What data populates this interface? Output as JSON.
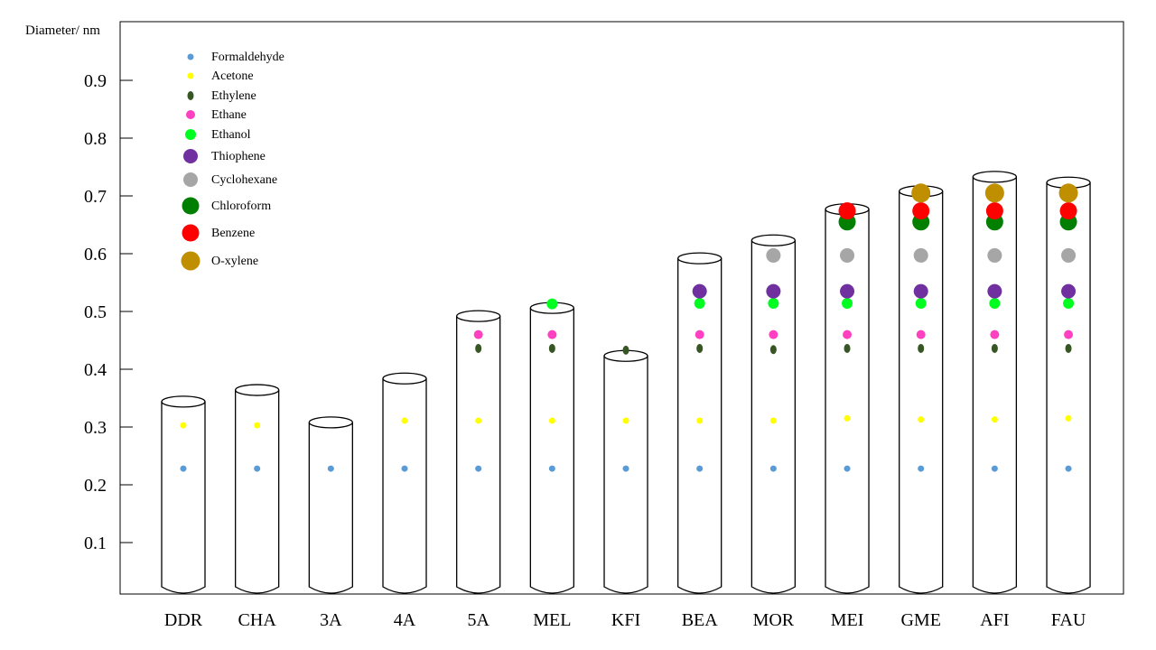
{
  "chart_data": {
    "type": "scatter",
    "title": "",
    "ylabel": "Diameter/ nm",
    "xlabel": "",
    "ylim": [
      0,
      1.0
    ],
    "yticks": [
      "0.1",
      "0.2",
      "0.3",
      "0.4",
      "0.5",
      "0.6",
      "0.7",
      "0.8",
      "0.9"
    ],
    "legend_position": "top-left",
    "molecules": [
      {
        "name": "Formaldehyde",
        "color": "#5b9bd5",
        "size": 3.5
      },
      {
        "name": "Acetone",
        "color": "#ffff00",
        "size": 3.5
      },
      {
        "name": "Ethylene",
        "color": "#375623",
        "size": 4
      },
      {
        "name": "Ethane",
        "color": "#ff40c0",
        "size": 5
      },
      {
        "name": "Ethanol",
        "color": "#00ff20",
        "size": 6
      },
      {
        "name": "Thiophene",
        "color": "#7030a0",
        "size": 8
      },
      {
        "name": "Cyclohexane",
        "color": "#a6a6a6",
        "size": 8
      },
      {
        "name": "Chloroform",
        "color": "#007f00",
        "size": 9.5
      },
      {
        "name": "Benzene",
        "color": "#ff0000",
        "size": 9.5
      },
      {
        "name": "O-xylene",
        "color": "#bf8f00",
        "size": 10.5
      }
    ],
    "categories": [
      "DDR",
      "CHA",
      "3A",
      "4A",
      "5A",
      "MEL",
      "KFI",
      "BEA",
      "MOR",
      "MEI",
      "GME",
      "AFI",
      "FAU"
    ],
    "pore_diameter": [
      0.344,
      0.364,
      0.308,
      0.384,
      0.492,
      0.506,
      0.423,
      0.592,
      0.623,
      0.677,
      0.708,
      0.733,
      0.723
    ],
    "points": [
      [
        [
          "Formaldehyde",
          0.228
        ],
        [
          "Acetone",
          0.303
        ]
      ],
      [
        [
          "Formaldehyde",
          0.228
        ],
        [
          "Acetone",
          0.303
        ]
      ],
      [
        [
          "Formaldehyde",
          0.228
        ]
      ],
      [
        [
          "Formaldehyde",
          0.228
        ],
        [
          "Acetone",
          0.311
        ]
      ],
      [
        [
          "Formaldehyde",
          0.228
        ],
        [
          "Acetone",
          0.311
        ],
        [
          "Ethylene",
          0.436
        ],
        [
          "Ethane",
          0.46
        ]
      ],
      [
        [
          "Formaldehyde",
          0.228
        ],
        [
          "Acetone",
          0.311
        ],
        [
          "Ethylene",
          0.436
        ],
        [
          "Ethane",
          0.46
        ],
        [
          "Ethanol",
          0.513
        ]
      ],
      [
        [
          "Formaldehyde",
          0.228
        ],
        [
          "Acetone",
          0.311
        ],
        [
          "Ethylene",
          0.433
        ]
      ],
      [
        [
          "Formaldehyde",
          0.228
        ],
        [
          "Acetone",
          0.311
        ],
        [
          "Ethylene",
          0.436
        ],
        [
          "Ethane",
          0.46
        ],
        [
          "Ethanol",
          0.514
        ],
        [
          "Thiophene",
          0.535
        ]
      ],
      [
        [
          "Formaldehyde",
          0.228
        ],
        [
          "Acetone",
          0.311
        ],
        [
          "Ethylene",
          0.434
        ],
        [
          "Ethane",
          0.46
        ],
        [
          "Ethanol",
          0.514
        ],
        [
          "Thiophene",
          0.535
        ],
        [
          "Cyclohexane",
          0.597
        ]
      ],
      [
        [
          "Formaldehyde",
          0.228
        ],
        [
          "Acetone",
          0.315
        ],
        [
          "Ethylene",
          0.436
        ],
        [
          "Ethane",
          0.46
        ],
        [
          "Ethanol",
          0.514
        ],
        [
          "Thiophene",
          0.535
        ],
        [
          "Cyclohexane",
          0.597
        ],
        [
          "Chloroform",
          0.655
        ],
        [
          "Benzene",
          0.674
        ]
      ],
      [
        [
          "Formaldehyde",
          0.228
        ],
        [
          "Acetone",
          0.313
        ],
        [
          "Ethylene",
          0.436
        ],
        [
          "Ethane",
          0.46
        ],
        [
          "Ethanol",
          0.514
        ],
        [
          "Thiophene",
          0.535
        ],
        [
          "Cyclohexane",
          0.597
        ],
        [
          "Chloroform",
          0.655
        ],
        [
          "Benzene",
          0.674
        ],
        [
          "O-xylene",
          0.705
        ]
      ],
      [
        [
          "Formaldehyde",
          0.228
        ],
        [
          "Acetone",
          0.313
        ],
        [
          "Ethylene",
          0.436
        ],
        [
          "Ethane",
          0.46
        ],
        [
          "Ethanol",
          0.514
        ],
        [
          "Thiophene",
          0.535
        ],
        [
          "Cyclohexane",
          0.597
        ],
        [
          "Chloroform",
          0.655
        ],
        [
          "Benzene",
          0.674
        ],
        [
          "O-xylene",
          0.705
        ]
      ],
      [
        [
          "Formaldehyde",
          0.228
        ],
        [
          "Acetone",
          0.315
        ],
        [
          "Ethylene",
          0.436
        ],
        [
          "Ethane",
          0.46
        ],
        [
          "Ethanol",
          0.514
        ],
        [
          "Thiophene",
          0.535
        ],
        [
          "Cyclohexane",
          0.597
        ],
        [
          "Chloroform",
          0.655
        ],
        [
          "Benzene",
          0.674
        ],
        [
          "O-xylene",
          0.705
        ]
      ]
    ]
  }
}
